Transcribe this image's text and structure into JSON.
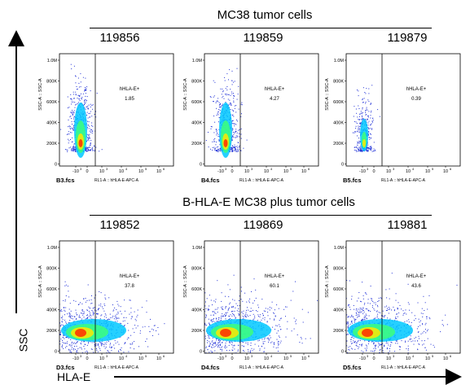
{
  "axes": {
    "y_label": "SSC",
    "x_label": "HLA-E"
  },
  "chart_data": [
    {
      "type": "scatter",
      "group": "MC38 tumor cells",
      "sample_id": "119856",
      "file": "B3.fcs",
      "xlabel": "RL1-A :: hHLA-E-APC-A",
      "ylabel": "SSC-A :: SSC-A",
      "gate_label": "hHLA-E+",
      "gate_percent": "1.85",
      "x_ticks": [
        "-10",
        "0",
        "10",
        "10",
        "10",
        "10",
        "10"
      ],
      "x_tick_exps": [
        "3",
        "",
        "3",
        "4",
        "5",
        "6",
        ""
      ],
      "y_ticks": [
        "1.0M",
        "800K",
        "600K",
        "400K",
        "200K",
        "0"
      ],
      "profile": "low"
    },
    {
      "type": "scatter",
      "group": "MC38 tumor cells",
      "sample_id": "119859",
      "file": "B4.fcs",
      "xlabel": "RL1-A :: hHLA-E-APC-A",
      "ylabel": "SSC-A :: SSC-A",
      "gate_label": "hHLA-E+",
      "gate_percent": "4.27",
      "x_ticks": [
        "-10",
        "0",
        "10",
        "10",
        "10",
        "10",
        "10"
      ],
      "x_tick_exps": [
        "3",
        "",
        "3",
        "4",
        "5",
        "6",
        ""
      ],
      "y_ticks": [
        "1.0M",
        "800K",
        "600K",
        "400K",
        "200K",
        "0"
      ],
      "profile": "low"
    },
    {
      "type": "scatter",
      "group": "MC38 tumor cells",
      "sample_id": "119879",
      "file": "B5.fcs",
      "xlabel": "RL1-A :: hHLA-E-APC-A",
      "ylabel": "SSC-A :: SSC-A",
      "gate_label": "hHLA-E+",
      "gate_percent": "0.39",
      "x_ticks": [
        "-10",
        "0",
        "10",
        "10",
        "10",
        "10",
        "10"
      ],
      "x_tick_exps": [
        "3",
        "",
        "3",
        "4",
        "5",
        "6",
        ""
      ],
      "y_ticks": [
        "1.0M",
        "800K",
        "600K",
        "400K",
        "200K",
        "0"
      ],
      "profile": "sparse"
    },
    {
      "type": "scatter",
      "group": "B-HLA-E MC38 plus tumor cells",
      "sample_id": "119852",
      "file": "D3.fcs",
      "xlabel": "RL1-A :: hHLA-E-APC-A",
      "ylabel": "SSC-A :: SSC-A",
      "gate_label": "hHLA-E+",
      "gate_percent": "37.8",
      "x_ticks": [
        "-10",
        "0",
        "10",
        "10",
        "10",
        "10",
        "10"
      ],
      "x_tick_exps": [
        "3",
        "",
        "3",
        "4",
        "5",
        "6",
        ""
      ],
      "y_ticks": [
        "1.0M",
        "800K",
        "600K",
        "400K",
        "200K",
        "0"
      ],
      "profile": "high"
    },
    {
      "type": "scatter",
      "group": "B-HLA-E MC38 plus tumor cells",
      "sample_id": "119869",
      "file": "D4.fcs",
      "xlabel": "RL1-A :: hHLA-E-APC-A",
      "ylabel": "SSC-A :: SSC-A",
      "gate_label": "hHLA-E+",
      "gate_percent": "60.1",
      "x_ticks": [
        "-10",
        "0",
        "10",
        "10",
        "10",
        "10",
        "10"
      ],
      "x_tick_exps": [
        "3",
        "",
        "3",
        "4",
        "5",
        "6",
        ""
      ],
      "y_ticks": [
        "1.0M",
        "800K",
        "600K",
        "400K",
        "200K",
        "0"
      ],
      "profile": "high"
    },
    {
      "type": "scatter",
      "group": "B-HLA-E MC38 plus tumor cells",
      "sample_id": "119881",
      "file": "D5.fcs",
      "xlabel": "RL1-A :: hHLA-E-APC-A",
      "ylabel": "SSC-A :: SSC-A",
      "gate_label": "hHLA-E+",
      "gate_percent": "43.6",
      "x_ticks": [
        "-10",
        "0",
        "10",
        "10",
        "10",
        "10",
        "10"
      ],
      "x_tick_exps": [
        "3",
        "",
        "3",
        "4",
        "5",
        "6",
        ""
      ],
      "y_ticks": [
        "1.0M",
        "800K",
        "600K",
        "400K",
        "200K",
        "0"
      ],
      "profile": "high"
    }
  ],
  "groups": [
    {
      "title": "MC38 tumor cells"
    },
    {
      "title": "B-HLA-E MC38 plus tumor cells"
    }
  ]
}
